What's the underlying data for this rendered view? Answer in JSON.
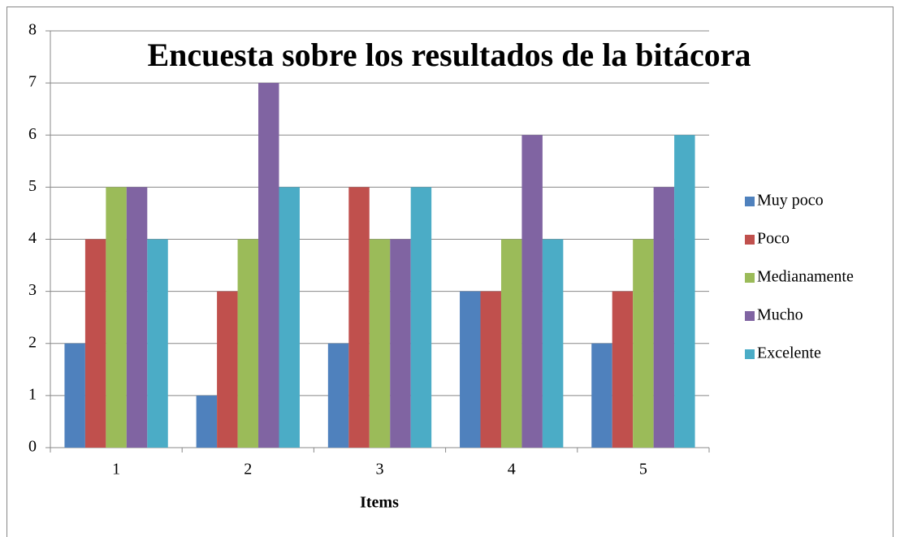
{
  "chart_data": {
    "type": "bar",
    "title": "Encuesta sobre los resultados de la bitácora",
    "x_label": "Items",
    "categories": [
      "1",
      "2",
      "3",
      "4",
      "5"
    ],
    "series": [
      {
        "name": "Muy poco",
        "color": "#4f81bd",
        "values": [
          2,
          1,
          2,
          3,
          2
        ]
      },
      {
        "name": "Poco",
        "color": "#c0504d",
        "values": [
          4,
          3,
          5,
          3,
          3
        ]
      },
      {
        "name": "Medianamente",
        "color": "#9bbb59",
        "values": [
          5,
          4,
          4,
          4,
          4
        ]
      },
      {
        "name": "Mucho",
        "color": "#8064a2",
        "values": [
          5,
          7,
          4,
          6,
          5
        ]
      },
      {
        "name": "Excelente",
        "color": "#4bacc6",
        "values": [
          4,
          5,
          5,
          4,
          6
        ]
      }
    ],
    "ylim": [
      0,
      8
    ],
    "yticks": [
      0,
      1,
      2,
      3,
      4,
      5,
      6,
      7,
      8
    ],
    "grid": true,
    "legend": "right"
  }
}
